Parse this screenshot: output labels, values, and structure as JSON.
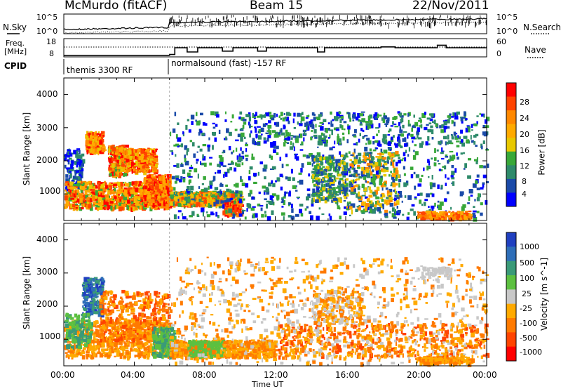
{
  "header": {
    "station": "McMurdo (fitACF)",
    "beam": "Beam 15",
    "date": "22/Nov/2011"
  },
  "noise_panel": {
    "left_label": "N.Sky",
    "right_label": "N.Search",
    "left_ticks": [
      "10^5",
      "10^0"
    ],
    "right_ticks": [
      "10^5",
      "10^0"
    ]
  },
  "freq_panel": {
    "left_label_line1": "Freq.",
    "left_label_line2": "[MHz]",
    "right_label": "Nave",
    "left_ticks": [
      "18",
      "8"
    ],
    "right_ticks": [
      "60",
      "0"
    ],
    "freq_range": [
      8,
      18
    ],
    "nave_range": [
      0,
      60
    ]
  },
  "cpid": {
    "label": "CPID",
    "modes": [
      {
        "name": "themis 3300 RF",
        "start_hour": 0
      },
      {
        "name": "normalsound (fast) -157 RF",
        "start_hour": 6
      }
    ]
  },
  "chart_data": [
    {
      "type": "heatmap",
      "name": "power",
      "xlabel": "Time UT",
      "ylabel": "Slant Range [km]",
      "xlim_hours": [
        0,
        24
      ],
      "ylim": [
        200,
        4500
      ],
      "yticks": [
        1000,
        2000,
        3000,
        4000
      ],
      "colorbar_label": "Power [dB]",
      "colorbar_ticks": [
        "28",
        "24",
        "20",
        "16",
        "12",
        "8",
        "4"
      ],
      "colorbar_colors": [
        "#ff0000",
        "#ff4400",
        "#ff8800",
        "#ffaa00",
        "#e8c800",
        "#38a838",
        "#2e8a6a",
        "#1a4aa8",
        "#0000ff"
      ],
      "grid": false
    },
    {
      "type": "heatmap",
      "name": "velocity",
      "xlabel": "Time UT",
      "ylabel": "Slant Range [km]",
      "xlim_hours": [
        0,
        24
      ],
      "ylim": [
        200,
        4500
      ],
      "yticks": [
        1000,
        2000,
        3000,
        4000
      ],
      "colorbar_label": "Velocity [m s^-1]",
      "colorbar_ticks": [
        "1000",
        "500",
        "100",
        "25",
        "-25",
        "-100",
        "-500",
        "-1000"
      ],
      "colorbar_colors": [
        "#2040c0",
        "#2e6eb8",
        "#3a9a78",
        "#5cc040",
        "#c8c8c8",
        "#ffaa00",
        "#ff7a00",
        "#ff4400",
        "#ff0000"
      ],
      "grid": false
    }
  ],
  "x_axis": {
    "ticks": [
      "00:00",
      "04:00",
      "08:00",
      "12:00",
      "16:00",
      "20:00",
      "00:00"
    ],
    "label": "Time UT"
  }
}
